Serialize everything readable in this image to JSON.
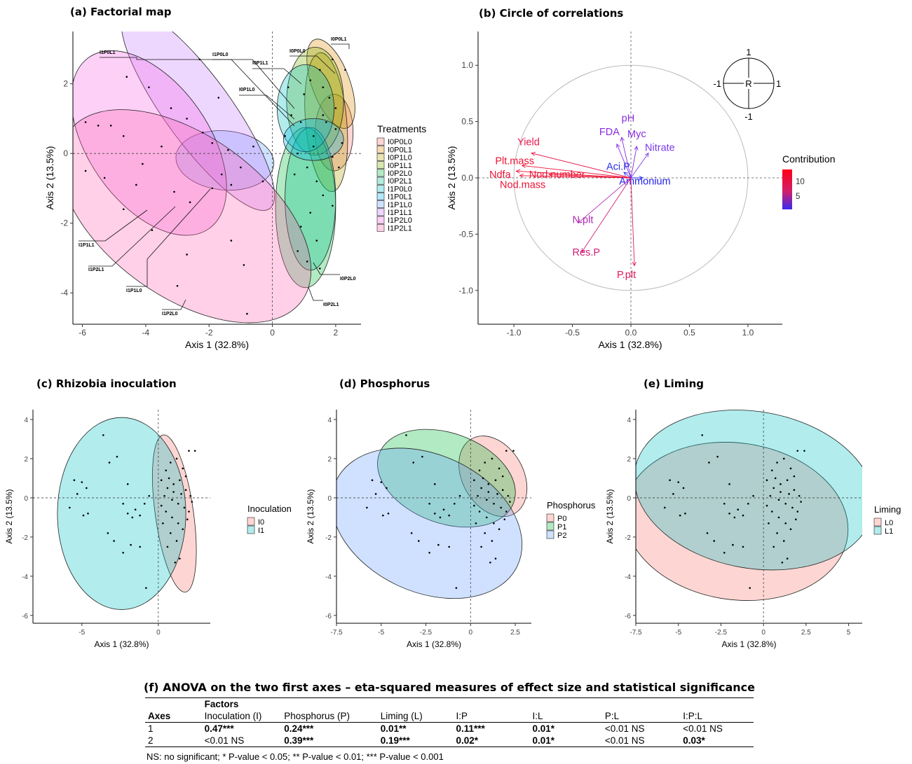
{
  "titles": {
    "a": "(a) Factorial map",
    "b": "(b) Circle of correlations",
    "c": "(c) Rhizobia inoculation",
    "d": "(d) Phosphorus",
    "e": "(e) Liming",
    "f": "(f) ANOVA on the two first axes – eta-squared measures of effect size and statistical significance"
  },
  "chart_data": [
    {
      "id": "a",
      "type": "scatter",
      "title": "(a) Factorial map",
      "xlabel": "Axis 1 (32.8%)",
      "ylabel": "Axis 2 (13.5%)",
      "xlim": [
        -6.3,
        2.8
      ],
      "ylim": [
        -4.9,
        3.5
      ],
      "xticks": [
        -6,
        -4,
        -2,
        0,
        2
      ],
      "yticks": [
        -4,
        -2,
        0,
        2
      ],
      "legend_title": "Treatments",
      "legend_position": "right",
      "series": [
        {
          "name": "I0P0L0",
          "color": "#F8766D",
          "ellipse": {
            "cx": 1.95,
            "cy": 0.6,
            "rx": 0.6,
            "ry": 1.1,
            "angle": 0
          }
        },
        {
          "name": "I0P0L1",
          "color": "#DE8C00",
          "ellipse": {
            "cx": 1.85,
            "cy": 2.0,
            "rx": 0.6,
            "ry": 1.35,
            "angle": 20
          }
        },
        {
          "name": "I0P1L0",
          "color": "#B79F00",
          "ellipse": {
            "cx": 1.7,
            "cy": 0.9,
            "rx": 0.65,
            "ry": 2.0,
            "angle": 5
          }
        },
        {
          "name": "I0P1L1",
          "color": "#7CAE00",
          "ellipse": {
            "cx": 1.35,
            "cy": 1.5,
            "rx": 0.9,
            "ry": 1.55,
            "angle": 0
          }
        },
        {
          "name": "I0P2L0",
          "color": "#00BA38",
          "ellipse": {
            "cx": 1.05,
            "cy": -1.55,
            "rx": 0.95,
            "ry": 2.3,
            "angle": 0
          }
        },
        {
          "name": "I0P2L1",
          "color": "#00C08B",
          "ellipse": {
            "cx": 1.2,
            "cy": -1.3,
            "rx": 0.8,
            "ry": 2.05,
            "angle": 0
          }
        },
        {
          "name": "I1P0L0",
          "color": "#00BFC4",
          "ellipse": {
            "cx": 1.05,
            "cy": 1.3,
            "rx": 0.9,
            "ry": 1.25,
            "angle": 0
          }
        },
        {
          "name": "I1P0L1",
          "color": "#00B4F0",
          "ellipse": {
            "cx": 1.3,
            "cy": 0.4,
            "rx": 0.95,
            "ry": 0.6,
            "angle": 0
          }
        },
        {
          "name": "I1P1L0",
          "color": "#619CFF",
          "ellipse": {
            "cx": -1.5,
            "cy": -0.2,
            "rx": 1.55,
            "ry": 0.85,
            "angle": -5
          }
        },
        {
          "name": "I1P1L1",
          "color": "#C77CFF",
          "ellipse": {
            "cx": -2.35,
            "cy": 1.25,
            "rx": 1.05,
            "ry": 3.5,
            "angle": 36
          }
        },
        {
          "name": "I1P2L0",
          "color": "#F564E3",
          "ellipse": {
            "cx": -3.9,
            "cy": 0.3,
            "rx": 1.9,
            "ry": 3.0,
            "angle": 35
          }
        },
        {
          "name": "I1P2L1",
          "color": "#FF64B0",
          "ellipse": {
            "cx": -2.75,
            "cy": -1.8,
            "rx": 4.55,
            "ry": 2.3,
            "angle": -36
          }
        }
      ],
      "points": [
        [
          1.2,
          2.1
        ],
        [
          1.5,
          2.4
        ],
        [
          1.9,
          2.7
        ],
        [
          2.3,
          2.4
        ],
        [
          1.8,
          1.6
        ],
        [
          1.6,
          1.1
        ],
        [
          2.0,
          0.7
        ],
        [
          2.2,
          0.3
        ],
        [
          1.9,
          -0.1
        ],
        [
          1.3,
          0.5
        ],
        [
          0.9,
          0.9
        ],
        [
          0.6,
          1.1
        ],
        [
          0.4,
          0.5
        ],
        [
          0.8,
          0.0
        ],
        [
          1.1,
          -0.4
        ],
        [
          1.4,
          -0.8
        ],
        [
          1.6,
          -1.2
        ],
        [
          1.2,
          -1.7
        ],
        [
          0.9,
          -2.1
        ],
        [
          1.4,
          -2.5
        ],
        [
          1.1,
          -3.1
        ],
        [
          1.5,
          -3.3
        ],
        [
          0.8,
          -2.8
        ],
        [
          1.7,
          0.9
        ],
        [
          2.1,
          -0.4
        ],
        [
          1.0,
          1.7
        ],
        [
          0.5,
          1.9
        ],
        [
          1.6,
          1.9
        ],
        [
          2.0,
          1.3
        ],
        [
          1.3,
          0.2
        ],
        [
          0.7,
          -0.6
        ],
        [
          1.9,
          -1.5
        ],
        [
          -4.6,
          2.2
        ],
        [
          -3.9,
          1.9
        ],
        [
          -3.2,
          1.3
        ],
        [
          -2.7,
          1.0
        ],
        [
          -2.2,
          0.6
        ],
        [
          -1.9,
          0.3
        ],
        [
          -1.6,
          -0.6
        ],
        [
          -1.3,
          -0.9
        ],
        [
          -1.0,
          -0.4
        ],
        [
          -0.6,
          0.2
        ],
        [
          -1.4,
          0.1
        ],
        [
          -5.9,
          0.9
        ],
        [
          -5.5,
          0.8
        ],
        [
          -5.1,
          0.8
        ],
        [
          -4.7,
          0.5
        ],
        [
          -4.1,
          -0.3
        ],
        [
          -5.9,
          -0.5
        ],
        [
          -5.3,
          -0.7
        ],
        [
          -2.6,
          -1.4
        ],
        [
          -2.7,
          -2.9
        ],
        [
          -3.1,
          -1.1
        ],
        [
          -1.3,
          -2.5
        ],
        [
          -0.8,
          -4.6
        ],
        [
          -3.8,
          -2.2
        ],
        [
          -4.3,
          -0.9
        ],
        [
          -1.9,
          -1.0
        ],
        [
          -0.3,
          -0.8
        ],
        [
          -2.3,
          2.7
        ],
        [
          -1.7,
          1.6
        ],
        [
          -3.5,
          0.2
        ],
        [
          -4.7,
          -1.6
        ],
        [
          -3.0,
          -3.8
        ],
        [
          -0.9,
          -3.2
        ]
      ],
      "point_labels": [
        "I1P0L1",
        "I1P0L0",
        "I0P1L1",
        "I0P1L0",
        "I0P0L0",
        "I0P0L1",
        "I1P1L1",
        "I1P2L1",
        "I1P1L0",
        "I1P2L0",
        "I0P2L0",
        "I0P2L1"
      ]
    },
    {
      "id": "b",
      "type": "scatter",
      "title": "(b) Circle of correlations",
      "xlabel": "Axis 1 (32.8%)",
      "ylabel": "Axis 2 (13.5%)",
      "xlim": [
        -1.3,
        1.3
      ],
      "ylim": [
        -1.3,
        1.3
      ],
      "xticks": [
        -1.0,
        -0.5,
        0.0,
        0.5,
        1.0
      ],
      "yticks": [
        -1.0,
        -0.5,
        0.0,
        0.5,
        1.0
      ],
      "legend_title": "Contribution",
      "legend_ticks": [
        10,
        5
      ],
      "inset_labels": {
        "top": "1",
        "bottom": "-1",
        "left": "-1",
        "right": "1",
        "center": "R"
      },
      "vectors": [
        {
          "name": "Yield",
          "x": -0.85,
          "y": 0.22,
          "contribution": 11,
          "color": "#E8174E"
        },
        {
          "name": "Plt.mass",
          "x": -0.93,
          "y": 0.11,
          "contribution": 12,
          "color": "#EE1436"
        },
        {
          "name": "Ndfa",
          "x": -0.98,
          "y": 0.06,
          "contribution": 12,
          "color": "#EE1436"
        },
        {
          "name": "Nod.number",
          "x": -0.7,
          "y": 0.03,
          "contribution": 12,
          "color": "#EE1436"
        },
        {
          "name": "Nod.mass",
          "x": -0.95,
          "y": 0.02,
          "contribution": 12,
          "color": "#EE1436"
        },
        {
          "name": "pH",
          "x": -0.08,
          "y": 0.36,
          "contribution": 3,
          "color": "#8A2BE2"
        },
        {
          "name": "FDA",
          "x": -0.12,
          "y": 0.3,
          "contribution": 3,
          "color": "#8A2BE2"
        },
        {
          "name": "Myc",
          "x": 0.05,
          "y": 0.28,
          "contribution": 3,
          "color": "#8A2BE2"
        },
        {
          "name": "Nitrate",
          "x": 0.15,
          "y": 0.22,
          "contribution": 3,
          "color": "#7A3BE8"
        },
        {
          "name": "Aci.P",
          "x": -0.06,
          "y": 0.05,
          "contribution": 2,
          "color": "#2B30E8"
        },
        {
          "name": "Ammonium",
          "x": 0.1,
          "y": 0.0,
          "contribution": 1,
          "color": "#2020F0"
        },
        {
          "name": "N.plt",
          "x": -0.45,
          "y": -0.4,
          "contribution": 7,
          "color": "#B02AB5"
        },
        {
          "name": "Res.P",
          "x": -0.42,
          "y": -0.66,
          "contribution": 9,
          "color": "#D21F78"
        },
        {
          "name": "P.plt",
          "x": 0.03,
          "y": -0.78,
          "contribution": 10,
          "color": "#E2175E"
        }
      ]
    },
    {
      "id": "c",
      "type": "scatter",
      "title": "(c) Rhizobia inoculation",
      "xlabel": "Axis 1 (32.8%)",
      "ylabel": "Axis 2 (13.5%)",
      "xlim": [
        -8.2,
        3.4
      ],
      "ylim": [
        -6.4,
        4.5
      ],
      "xticks": [
        -5,
        0
      ],
      "yticks": [
        -6,
        -4,
        -2,
        0,
        2,
        4
      ],
      "legend_title": "Inoculation",
      "legend_position": "right",
      "series": [
        {
          "name": "I0",
          "color": "#F8766D",
          "ellipse": {
            "cx": 1.05,
            "cy": -0.8,
            "rx": 1.25,
            "ry": 4.05,
            "angle": 8
          }
        },
        {
          "name": "I1",
          "color": "#00BFC4",
          "ellipse": {
            "cx": -2.4,
            "cy": -0.8,
            "rx": 4.2,
            "ry": 4.9,
            "angle": 0
          }
        }
      ]
    },
    {
      "id": "d",
      "type": "scatter",
      "title": "(d) Phosphorus",
      "xlabel": "Axis 1 (32.8%)",
      "ylabel": "Axis 2 (13.5%)",
      "xlim": [
        -7.5,
        3.4
      ],
      "ylim": [
        -6.4,
        4.5
      ],
      "xticks": [
        -7.5,
        -5.0,
        -2.5,
        0.0,
        2.5
      ],
      "yticks": [
        -6,
        -4,
        -2,
        0,
        2,
        4
      ],
      "legend_title": "Phosphorus",
      "legend_position": "right",
      "series": [
        {
          "name": "P0",
          "color": "#F8766D",
          "ellipse": {
            "cx": 1.25,
            "cy": 1.1,
            "rx": 1.7,
            "ry": 2.2,
            "angle": 30
          }
        },
        {
          "name": "P1",
          "color": "#00BA38",
          "ellipse": {
            "cx": -1.35,
            "cy": 1.0,
            "rx": 4.0,
            "ry": 2.3,
            "angle": -20
          }
        },
        {
          "name": "P2",
          "color": "#619CFF",
          "ellipse": {
            "cx": -2.45,
            "cy": -1.3,
            "rx": 5.6,
            "ry": 3.5,
            "angle": -25
          }
        }
      ]
    },
    {
      "id": "e",
      "type": "scatter",
      "title": "(e) Liming",
      "xlabel": "Axis 1 (32.8%)",
      "ylabel": "Axis 2 (13.5%)",
      "xlim": [
        -7.5,
        5.8
      ],
      "ylim": [
        -6.4,
        4.5
      ],
      "xticks": [
        -7.5,
        -5.0,
        -2.5,
        0.0,
        2.5,
        5.0
      ],
      "yticks": [
        -6,
        -4,
        -2,
        0,
        2,
        4
      ],
      "legend_title": "Liming",
      "legend_position": "right",
      "series": [
        {
          "name": "L0",
          "color": "#F8766D",
          "ellipse": {
            "cx": -1.6,
            "cy": -1.2,
            "rx": 6.6,
            "ry": 4.0,
            "angle": -8
          }
        },
        {
          "name": "L1",
          "color": "#00BFC4",
          "ellipse": {
            "cx": -0.55,
            "cy": 0.4,
            "rx": 7.1,
            "ry": 4.0,
            "angle": -10
          }
        }
      ]
    },
    {
      "id": "f",
      "type": "table",
      "title": "(f) ANOVA on the two first axes – eta-squared measures of effect size and statistical significance",
      "group_header": "Factors",
      "row_header": "Axes",
      "columns": [
        "Inoculation (I)",
        "Phosphorus (P)",
        "Liming (L)",
        "I:P",
        "I:L",
        "P:L",
        "I:P:L"
      ],
      "rows": [
        {
          "axis": "1",
          "cells": [
            {
              "value": "0.47***",
              "bold": true
            },
            {
              "value": "0.24***",
              "bold": true
            },
            {
              "value": "0.01**",
              "bold": true
            },
            {
              "value": "0.11***",
              "bold": true
            },
            {
              "value": "0.01*",
              "bold": true
            },
            {
              "value": "<0.01 NS",
              "bold": false
            },
            {
              "value": "<0.01 NS",
              "bold": false
            }
          ]
        },
        {
          "axis": "2",
          "cells": [
            {
              "value": "<0.01 NS",
              "bold": false
            },
            {
              "value": "0.39***",
              "bold": true
            },
            {
              "value": "0.19***",
              "bold": true
            },
            {
              "value": "0.02*",
              "bold": true
            },
            {
              "value": "0.01*",
              "bold": true
            },
            {
              "value": "<0.01 NS",
              "bold": false
            },
            {
              "value": "0.03*",
              "bold": true
            }
          ]
        }
      ],
      "note": "NS: no significant; * P-value < 0.05; ** P-value < 0.01; *** P-value < 0.001"
    }
  ]
}
